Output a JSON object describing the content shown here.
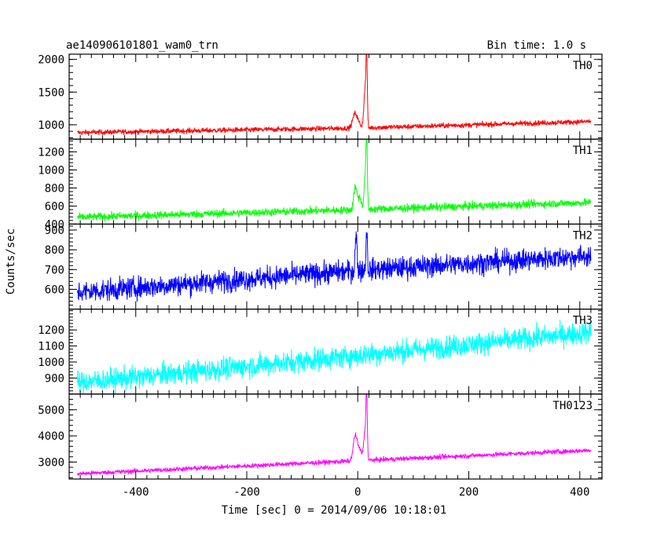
{
  "chart_data": {
    "type": "line",
    "title": "ae140906101801_wam0_trn",
    "subtitle": "Bin time: 1.0 s",
    "xlabel": "Time [sec] 0 = 2014/09/06 10:18:01",
    "ylabel": "Counts/sec",
    "xlim": [
      -520,
      440
    ],
    "x_ticks": [
      -400,
      -200,
      0,
      200,
      400
    ],
    "x_range": [
      -505,
      420
    ],
    "grid": false,
    "panels": [
      {
        "name": "TH0",
        "color": "#ff0000",
        "ylim": [
          780,
          2080
        ],
        "y_ticks": [
          1000,
          1500,
          2000
        ],
        "baseline": [
          [
            -505,
            880
          ],
          [
            0,
            950
          ],
          [
            420,
            1050
          ]
        ],
        "noise": 20,
        "peaks": [
          [
            -5,
            10,
            1150
          ],
          [
            2,
            14,
            1000
          ],
          [
            16,
            3,
            1950
          ],
          [
            13,
            5,
            1500
          ]
        ]
      },
      {
        "name": "TH1",
        "color": "#00ff00",
        "ylim": [
          400,
          1340
        ],
        "y_ticks": [
          400,
          600,
          800,
          1000,
          1200
        ],
        "baseline": [
          [
            -505,
            475
          ],
          [
            0,
            560
          ],
          [
            420,
            640
          ]
        ],
        "noise": 22,
        "peaks": [
          [
            -5,
            6,
            780
          ],
          [
            2,
            10,
            700
          ],
          [
            16,
            3,
            1340
          ],
          [
            13,
            4,
            900
          ]
        ]
      },
      {
        "name": "TH2",
        "color": "#0000ff",
        "ylim": [
          500,
          930
        ],
        "y_ticks": [
          600,
          700,
          800,
          900
        ],
        "baseline": [
          [
            -505,
            585
          ],
          [
            0,
            695
          ],
          [
            420,
            770
          ]
        ],
        "noise": 28,
        "peaks": [
          [
            -3,
            4,
            870
          ],
          [
            16,
            3,
            900
          ]
        ]
      },
      {
        "name": "TH3",
        "color": "#00ffff",
        "ylim": [
          800,
          1330
        ],
        "y_ticks": [
          900,
          1000,
          1100,
          1200
        ],
        "baseline": [
          [
            -505,
            870
          ],
          [
            0,
            1040
          ],
          [
            420,
            1185
          ]
        ],
        "noise": 35,
        "peaks": []
      },
      {
        "name": "TH0123",
        "color": "#ff00ff",
        "ylim": [
          2350,
          5600
        ],
        "y_ticks": [
          3000,
          4000,
          5000
        ],
        "baseline": [
          [
            -505,
            2550
          ],
          [
            0,
            3050
          ],
          [
            420,
            3450
          ]
        ],
        "noise": 45,
        "peaks": [
          [
            -5,
            8,
            3800
          ],
          [
            2,
            14,
            3500
          ],
          [
            16,
            3,
            5400
          ],
          [
            13,
            5,
            4100
          ]
        ]
      }
    ]
  }
}
